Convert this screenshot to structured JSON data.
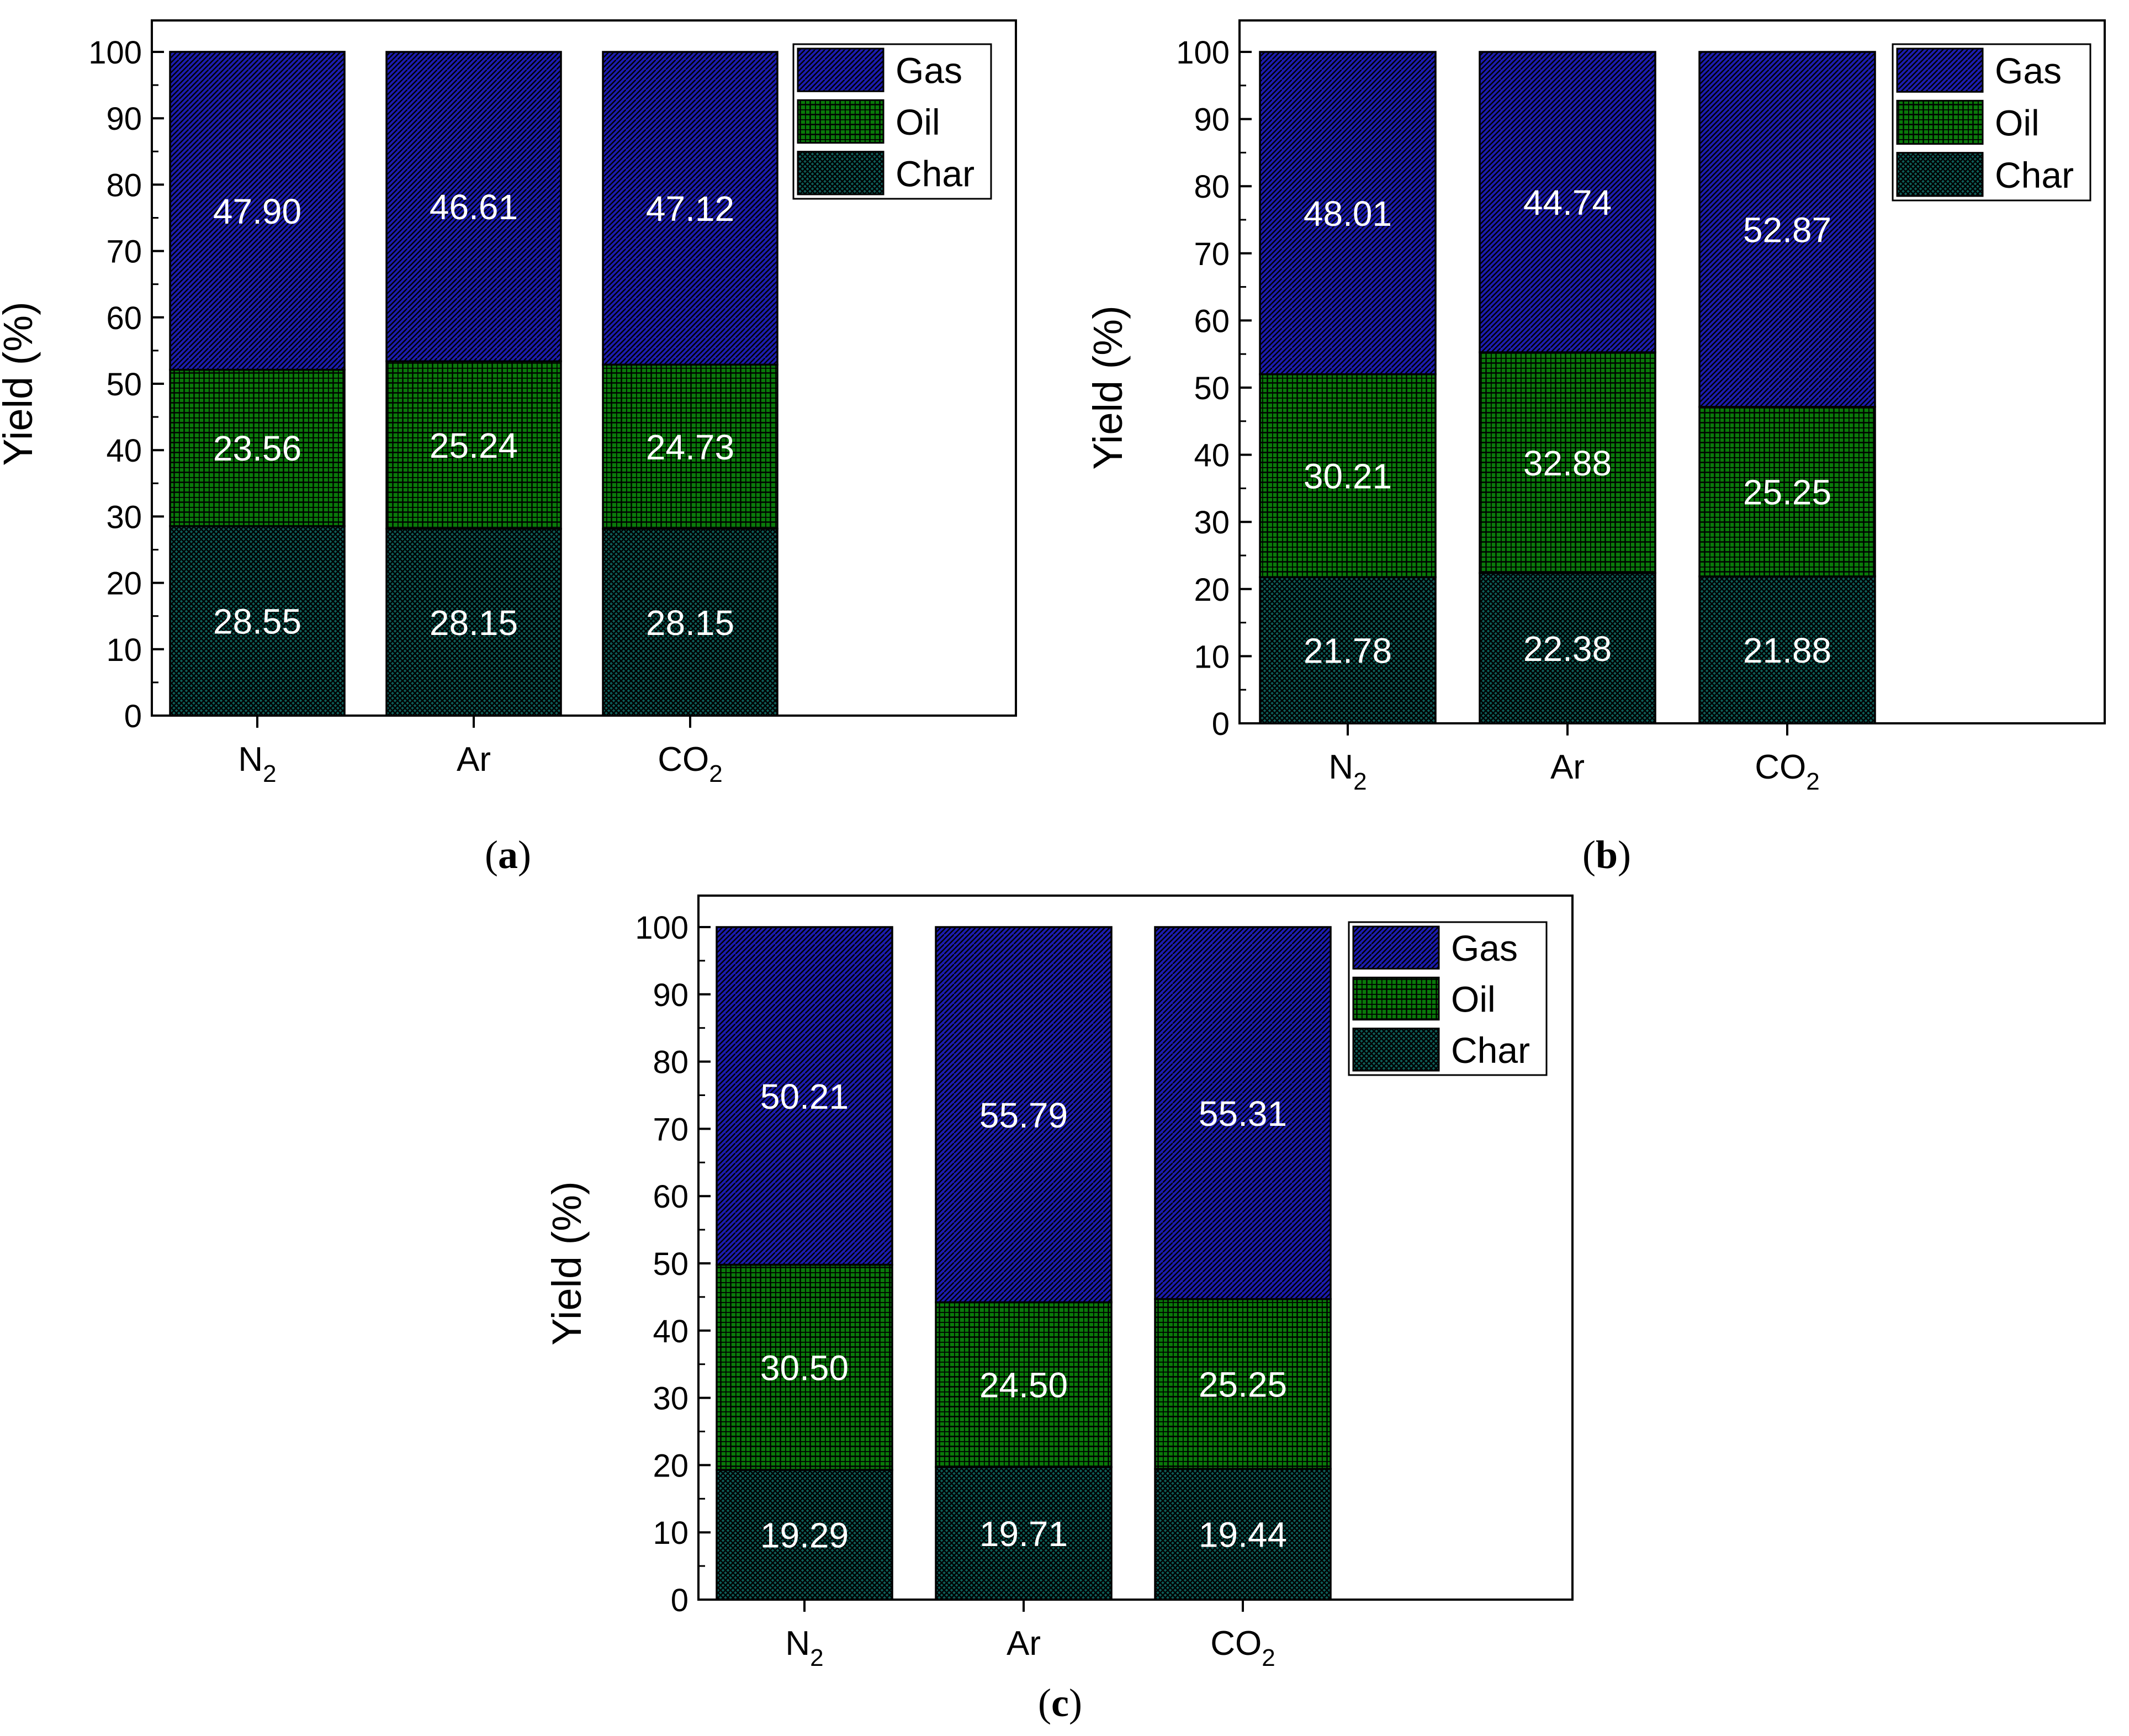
{
  "series_styles": [
    {
      "key": "char",
      "color": "#0e5e58",
      "pattern": "crosshatch"
    },
    {
      "key": "oil",
      "color": "#0a7a0a",
      "pattern": "grid"
    },
    {
      "key": "gas",
      "color": "#1c1cb0",
      "pattern": "diagonal"
    }
  ],
  "chart_data": [
    {
      "type": "bar",
      "stacked": true,
      "panel": "a",
      "ylabel": "Yield (%)",
      "ylim": [
        0,
        100
      ],
      "yticks": [
        0,
        10,
        20,
        30,
        40,
        50,
        60,
        70,
        80,
        90,
        100
      ],
      "categories": [
        {
          "base": "N",
          "sub": "2"
        },
        {
          "base": "Ar",
          "sub": ""
        },
        {
          "base": "CO",
          "sub": "2"
        }
      ],
      "series": [
        {
          "name": "Char",
          "values": [
            28.55,
            28.15,
            28.15
          ],
          "labels": [
            "28.55",
            "28.15",
            "28.15"
          ]
        },
        {
          "name": "Oil",
          "values": [
            23.56,
            25.24,
            24.73
          ],
          "labels": [
            "23.56",
            "25.24",
            "24.73"
          ]
        },
        {
          "name": "Gas",
          "values": [
            47.9,
            46.61,
            47.12
          ],
          "labels": [
            "47.90",
            "46.61",
            "47.12"
          ]
        }
      ],
      "legend": [
        "Gas",
        "Oil",
        "Char"
      ],
      "legend_position": "top-right"
    },
    {
      "type": "bar",
      "stacked": true,
      "panel": "b",
      "ylabel": "Yield (%)",
      "ylim": [
        0,
        100
      ],
      "yticks": [
        0,
        10,
        20,
        30,
        40,
        50,
        60,
        70,
        80,
        90,
        100
      ],
      "categories": [
        {
          "base": "N",
          "sub": "2"
        },
        {
          "base": "Ar",
          "sub": ""
        },
        {
          "base": "CO",
          "sub": "2"
        }
      ],
      "series": [
        {
          "name": "Char",
          "values": [
            21.78,
            22.38,
            21.88
          ],
          "labels": [
            "21.78",
            "22.38",
            "21.88"
          ]
        },
        {
          "name": "Oil",
          "values": [
            30.21,
            32.88,
            25.25
          ],
          "labels": [
            "30.21",
            "32.88",
            "25.25"
          ]
        },
        {
          "name": "Gas",
          "values": [
            48.01,
            44.74,
            52.87
          ],
          "labels": [
            "48.01",
            "44.74",
            "52.87"
          ]
        }
      ],
      "legend": [
        "Gas",
        "Oil",
        "Char"
      ],
      "legend_position": "top-right"
    },
    {
      "type": "bar",
      "stacked": true,
      "panel": "c",
      "ylabel": "Yield (%)",
      "ylim": [
        0,
        100
      ],
      "yticks": [
        0,
        10,
        20,
        30,
        40,
        50,
        60,
        70,
        80,
        90,
        100
      ],
      "categories": [
        {
          "base": "N",
          "sub": "2"
        },
        {
          "base": "Ar",
          "sub": ""
        },
        {
          "base": "CO",
          "sub": "2"
        }
      ],
      "series": [
        {
          "name": "Char",
          "values": [
            19.29,
            19.71,
            19.44
          ],
          "labels": [
            "19.29",
            "19.71",
            "19.44"
          ]
        },
        {
          "name": "Oil",
          "values": [
            30.5,
            24.5,
            25.25
          ],
          "labels": [
            "30.50",
            "24.50",
            "25.25"
          ]
        },
        {
          "name": "Gas",
          "values": [
            50.21,
            55.79,
            55.31
          ],
          "labels": [
            "50.21",
            "55.79",
            "55.31"
          ]
        }
      ],
      "legend": [
        "Gas",
        "Oil",
        "Char"
      ],
      "legend_position": "top-right"
    }
  ],
  "captions": [
    "(a)",
    "(b)",
    "(c)"
  ]
}
